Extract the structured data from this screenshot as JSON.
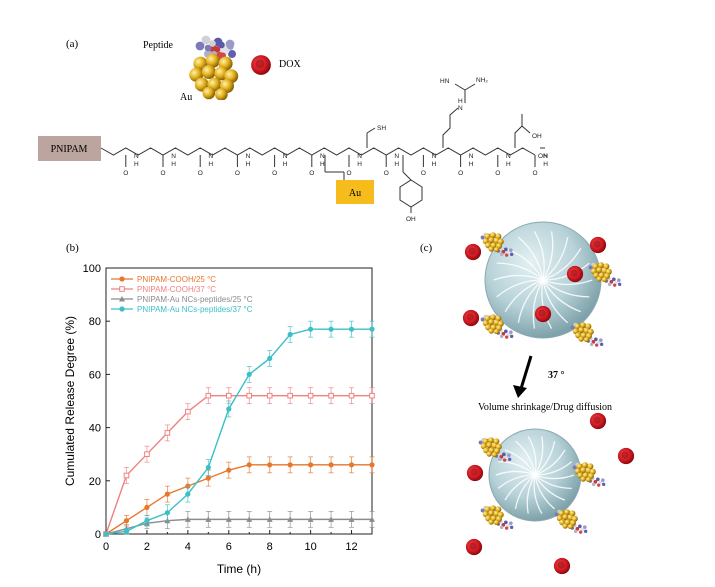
{
  "panels": {
    "a": "(a)",
    "b": "(b)",
    "c": "(c)"
  },
  "panel_a": {
    "peptide_label": "Peptide",
    "au_label": "Au",
    "dox_label": "DOX",
    "pnipam_box": "PNIPAM",
    "au_box": "Au",
    "atoms": {
      "sh": "SH",
      "oh": "OH",
      "n_label": "N",
      "h_label": "H",
      "o_label": "O",
      "hn": "HN",
      "nh2": "NH₂",
      "cooh": "OH"
    }
  },
  "panel_c": {
    "arrow_label": "37 °",
    "caption": "Volume shrinkage/Drug diffusion"
  },
  "colors": {
    "orange": "#e8762b",
    "salmon": "#f08080",
    "gray": "#8c8c8c",
    "teal": "#3cc0c8",
    "pnipam_box": "#bba59e",
    "au_box": "#f5bc1c",
    "dox": "#d01c24",
    "gold": "#d9a416"
  },
  "chart_data": {
    "type": "line",
    "xlabel": "Time (h)",
    "ylabel": "Cumulated Release Degree (%)",
    "xlim": [
      0,
      13
    ],
    "ylim": [
      0,
      100
    ],
    "xticks": [
      0,
      2,
      4,
      6,
      8,
      10,
      12
    ],
    "yticks": [
      0,
      20,
      40,
      60,
      80,
      100
    ],
    "legend_position": "top-left",
    "grid": false,
    "x": [
      0,
      1,
      2,
      3,
      4,
      5,
      6,
      7,
      8,
      9,
      10,
      11,
      12,
      13
    ],
    "series": [
      {
        "name": "PNIPAM-COOH/25 °C",
        "color": "#e8762b",
        "marker": "filled-circle",
        "values": [
          0,
          5,
          10,
          15,
          18,
          21,
          24,
          26,
          26,
          26,
          26,
          26,
          26,
          26
        ],
        "error": [
          0,
          2,
          3,
          3,
          3,
          3,
          3,
          3,
          3,
          3,
          3,
          3,
          3,
          3
        ]
      },
      {
        "name": "PNIPAM-COOH/37 °C",
        "color": "#f08080",
        "marker": "open-square",
        "values": [
          0,
          22,
          30,
          38,
          46,
          52,
          52,
          52,
          52,
          52,
          52,
          52,
          52,
          52
        ],
        "error": [
          0,
          3,
          3,
          3,
          3,
          3,
          3,
          3,
          3,
          3,
          3,
          3,
          3,
          3
        ]
      },
      {
        "name": "PNIPAM-Au NCs-peptides/25 °C",
        "color": "#8c8c8c",
        "marker": "triangle",
        "values": [
          0,
          2,
          4,
          5,
          5.5,
          5.5,
          5.5,
          5.5,
          5.5,
          5.5,
          5.5,
          5.5,
          5.5,
          5.5
        ],
        "error": [
          0,
          1.5,
          2,
          3,
          3,
          3,
          3,
          3,
          3,
          3,
          3,
          3,
          3,
          3
        ]
      },
      {
        "name": "PNIPAM-Au NCs-peptides/37 °C",
        "color": "#3cc0c8",
        "marker": "filled-circle",
        "values": [
          0,
          1,
          5,
          8,
          15,
          25,
          47,
          60,
          66,
          75,
          77,
          77,
          77,
          77
        ],
        "error": [
          0,
          1,
          2,
          3,
          3,
          3,
          3,
          3,
          3,
          3,
          3,
          3,
          3,
          3
        ]
      }
    ]
  }
}
